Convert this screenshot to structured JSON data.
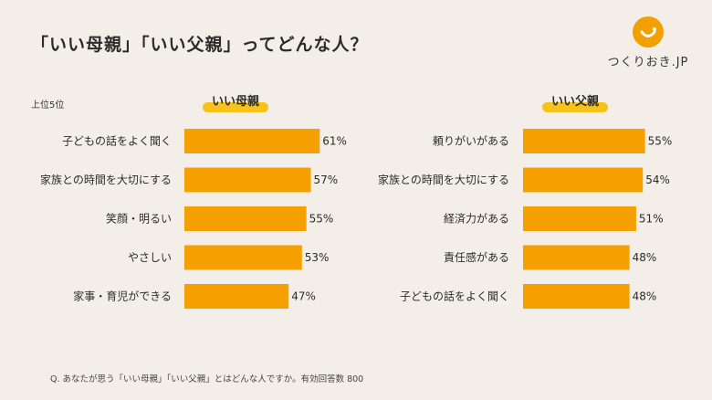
{
  "title": "「いい母親」「いい父親」ってどんな人？",
  "logo": {
    "text": "つくりおき.JP",
    "icon": "smile-face-icon"
  },
  "rank_note": "上位5位",
  "footnote": "Q. あなたが思う「いい母親」「いい父親」とはどんな人ですか。有効回答数 800",
  "colors": {
    "bar": "#f5a000",
    "highlight": "#f7c21a",
    "background": "#f3efe8"
  },
  "chart_data": [
    {
      "type": "bar",
      "orientation": "horizontal",
      "title": "いい母親",
      "categories": [
        "子どもの話をよく聞く",
        "家族との時間を大切にする",
        "笑顔・明るい",
        "やさしい",
        "家事・育児ができる"
      ],
      "values": [
        61,
        57,
        55,
        53,
        47
      ],
      "value_labels": [
        "61%",
        "57%",
        "55%",
        "53%",
        "47%"
      ],
      "unit": "%"
    },
    {
      "type": "bar",
      "orientation": "horizontal",
      "title": "いい父親",
      "categories": [
        "頼りがいがある",
        "家族との時間を大切にする",
        "経済力がある",
        "責任感がある",
        "子どもの話をよく聞く"
      ],
      "values": [
        55,
        54,
        51,
        48,
        48
      ],
      "value_labels": [
        "55%",
        "54%",
        "51%",
        "48%",
        "48%"
      ],
      "unit": "%"
    }
  ]
}
